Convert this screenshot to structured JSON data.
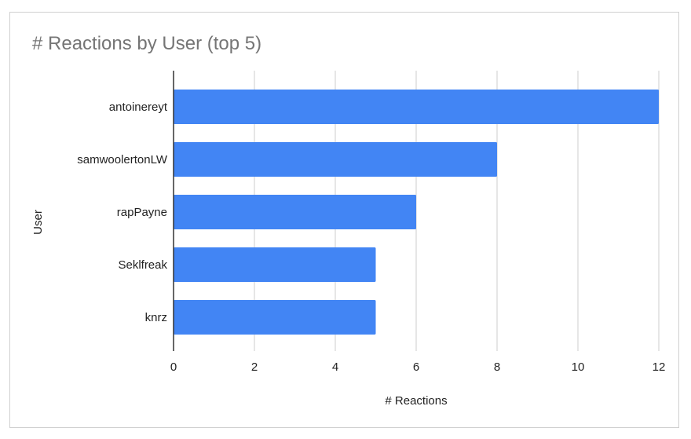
{
  "chart_data": {
    "type": "bar",
    "orientation": "horizontal",
    "title": "# Reactions by User (top 5)",
    "xlabel": "# Reactions",
    "ylabel": "User",
    "categories": [
      "antoinereyt",
      "samwoolertonLW",
      "rapPayne",
      "Seklfreak",
      "knrz"
    ],
    "values": [
      12,
      8,
      6,
      5,
      5
    ],
    "xlim": [
      0,
      12
    ],
    "xticks": [
      0,
      2,
      4,
      6,
      8,
      10,
      12
    ],
    "grid": true,
    "legend": "none",
    "bar_color": "#4285f4",
    "grid_color": "#cccccc",
    "axis_color": "#333333"
  }
}
